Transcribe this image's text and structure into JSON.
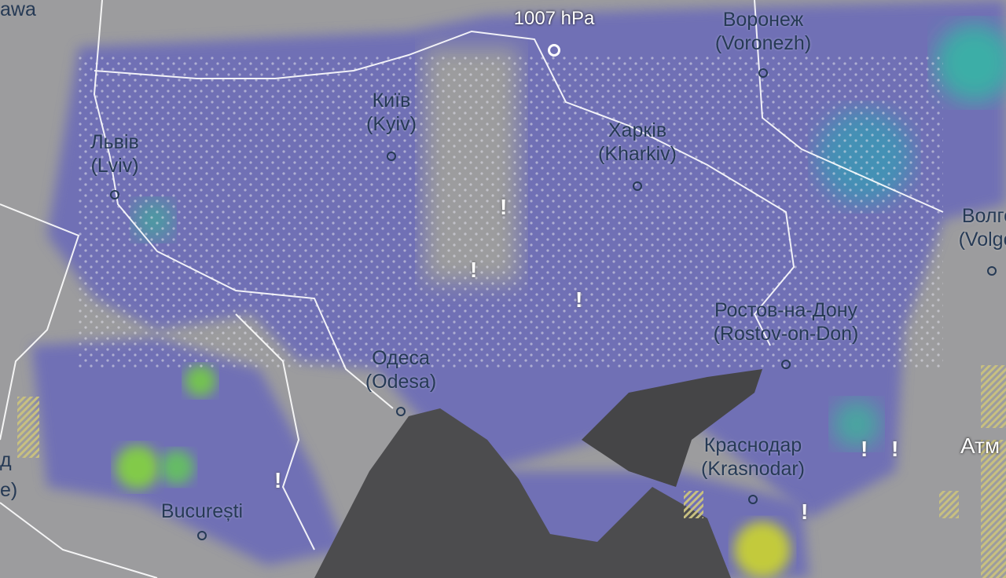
{
  "map": {
    "pressure": {
      "label": "1007 hPa"
    },
    "cities": [
      {
        "native": "Київ",
        "latin": "(Kyiv)"
      },
      {
        "native": "Львів",
        "latin": "(Lviv)"
      },
      {
        "native": "Харків",
        "latin": "(Kharkiv)"
      },
      {
        "native": "Воронеж",
        "latin": "(Voronezh)"
      },
      {
        "native": "Одеса",
        "latin": "(Odesa)"
      },
      {
        "native": "Ростов-на-Дону",
        "latin": "(Rostov-on-Don)"
      },
      {
        "native": "Краснодар",
        "latin": "(Krasnodar)"
      },
      {
        "native": "Волгог",
        "latin": "(Volgog"
      },
      {
        "native": "București",
        "latin": ""
      }
    ],
    "edge_labels": {
      "top_left": "awa",
      "left_1": "д",
      "left_2": "e)",
      "right": "Атм"
    },
    "warning_icon": "!",
    "colors": {
      "land": "#9a9a9c",
      "sea": "#4a4a4c",
      "precip_light": "#6a6ab8",
      "precip_mid": "#3aa0b0",
      "precip_heavy": "#8ad040",
      "border": "#ffffff"
    }
  }
}
